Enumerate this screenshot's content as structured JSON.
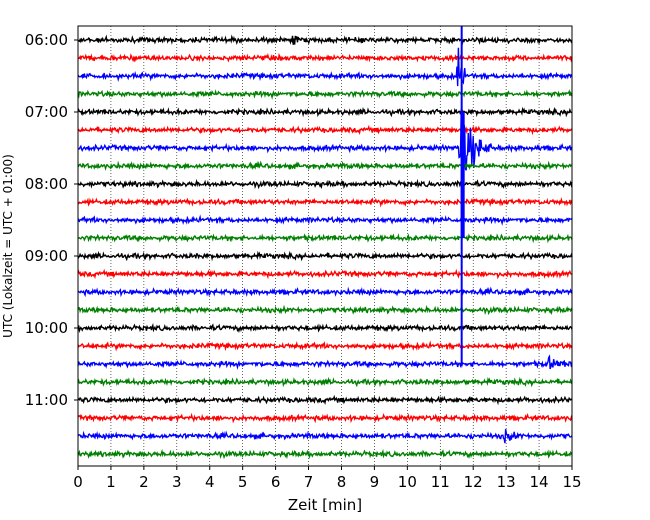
{
  "chart_data": {
    "type": "line",
    "title": "",
    "xlabel": "Zeit  [min]",
    "ylabel": "UTC (Lokalzeit = UTC + 01:00)",
    "xlim": [
      0,
      15
    ],
    "x_ticks": [
      "0",
      "1",
      "2",
      "3",
      "4",
      "5",
      "6",
      "7",
      "8",
      "9",
      "10",
      "11",
      "12",
      "13",
      "14",
      "15"
    ],
    "y_tick_labels": [
      "06:00",
      "07:00",
      "08:00",
      "09:00",
      "10:00",
      "11:00"
    ],
    "grid": "vertical dotted",
    "trace_minutes": 15,
    "trace_start_times": [
      "06:00",
      "06:15",
      "06:30",
      "06:45",
      "07:00",
      "07:15",
      "07:30",
      "07:45",
      "08:00",
      "08:15",
      "08:30",
      "08:45",
      "09:00",
      "09:15",
      "09:30",
      "09:45",
      "10:00",
      "10:15",
      "10:30",
      "10:45",
      "11:00",
      "11:15",
      "11:30",
      "11:45"
    ],
    "trace_colors": [
      "#000000",
      "#ff0000",
      "#0000ff",
      "#008000"
    ],
    "events": [
      {
        "trace_start": "07:30",
        "start_min": 11.55,
        "end_min": 12.6,
        "peak_amplitude": "large",
        "note": "earthquake signal, clipped in adjacent traces"
      },
      {
        "trace_start": "06:30",
        "start_min": 11.5,
        "end_min": 11.8,
        "peak_amplitude": "large"
      },
      {
        "trace_start": "06:00",
        "start_min": 6.5,
        "end_min": 6.8,
        "peak_amplitude": "small"
      },
      {
        "trace_start": "06:00",
        "start_min": 12.7,
        "end_min": 12.9,
        "peak_amplitude": "small"
      },
      {
        "trace_start": "11:30",
        "start_min": 12.9,
        "end_min": 13.5,
        "peak_amplitude": "small"
      },
      {
        "trace_start": "10:30",
        "start_min": 14.2,
        "end_min": 15.0,
        "peak_amplitude": "small"
      }
    ]
  }
}
